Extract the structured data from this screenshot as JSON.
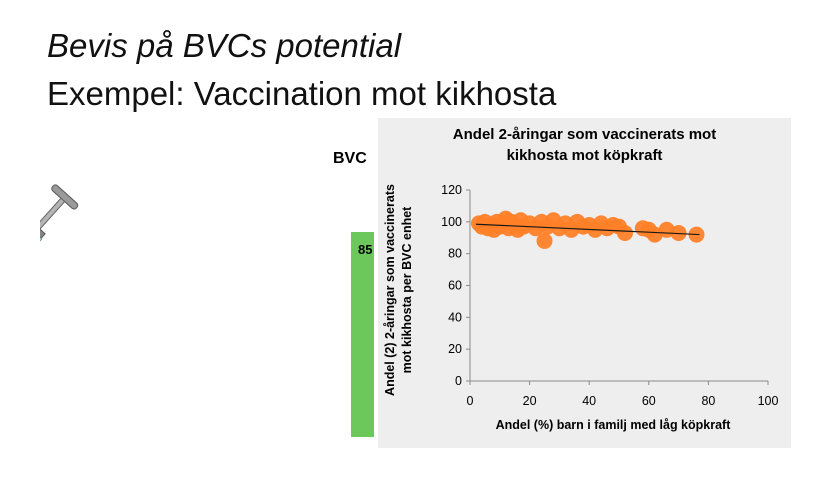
{
  "slide": {
    "title": "Bevis på BVCs potential",
    "subtitle": "Exempel: Vaccination mot kikhosta"
  },
  "bvc": {
    "label": "BVC",
    "value": "85",
    "color": "#6cc85a"
  },
  "colors": {
    "bubble": "#ff7f27",
    "trend": "#1a1a1a",
    "panel": "#eeeeee"
  },
  "icons": {
    "syringe": "syringe-icon"
  },
  "chart_data": {
    "type": "scatter",
    "title_line1": "Andel 2-åringar som vaccinerats mot",
    "title_line2": "kikhosta mot köpkraft",
    "ylabel_line1": "Andel (2) 2-åringar som vaccinerats",
    "ylabel_line2": "mot kikhosta per BVC enhet",
    "xlabel": "Andel (%) barn i familj med låg köpkraft",
    "xlim": [
      0,
      100
    ],
    "ylim": [
      0,
      120
    ],
    "xticks": [
      "0",
      "20",
      "40",
      "60",
      "80",
      "100"
    ],
    "yticks": [
      "0",
      "20",
      "40",
      "60",
      "80",
      "100",
      "120"
    ],
    "grid": false,
    "trendline": {
      "x": [
        2,
        77
      ],
      "y": [
        98.5,
        92
      ]
    },
    "points": [
      {
        "x": 3,
        "y": 99
      },
      {
        "x": 4,
        "y": 97
      },
      {
        "x": 5,
        "y": 100
      },
      {
        "x": 6,
        "y": 96
      },
      {
        "x": 7,
        "y": 98
      },
      {
        "x": 8,
        "y": 95
      },
      {
        "x": 9,
        "y": 100
      },
      {
        "x": 10,
        "y": 97
      },
      {
        "x": 11,
        "y": 99
      },
      {
        "x": 12,
        "y": 102
      },
      {
        "x": 13,
        "y": 96
      },
      {
        "x": 14,
        "y": 100
      },
      {
        "x": 15,
        "y": 98
      },
      {
        "x": 16,
        "y": 95
      },
      {
        "x": 17,
        "y": 101
      },
      {
        "x": 18,
        "y": 97
      },
      {
        "x": 20,
        "y": 99
      },
      {
        "x": 22,
        "y": 96
      },
      {
        "x": 24,
        "y": 100
      },
      {
        "x": 25,
        "y": 88
      },
      {
        "x": 26,
        "y": 97
      },
      {
        "x": 28,
        "y": 101
      },
      {
        "x": 30,
        "y": 96
      },
      {
        "x": 32,
        "y": 99
      },
      {
        "x": 34,
        "y": 95
      },
      {
        "x": 36,
        "y": 100
      },
      {
        "x": 38,
        "y": 97
      },
      {
        "x": 40,
        "y": 98
      },
      {
        "x": 42,
        "y": 95
      },
      {
        "x": 44,
        "y": 99
      },
      {
        "x": 46,
        "y": 96
      },
      {
        "x": 48,
        "y": 98
      },
      {
        "x": 50,
        "y": 97
      },
      {
        "x": 52,
        "y": 93
      },
      {
        "x": 58,
        "y": 96
      },
      {
        "x": 60,
        "y": 95
      },
      {
        "x": 62,
        "y": 92
      },
      {
        "x": 66,
        "y": 95
      },
      {
        "x": 70,
        "y": 93
      },
      {
        "x": 76,
        "y": 92
      }
    ]
  }
}
